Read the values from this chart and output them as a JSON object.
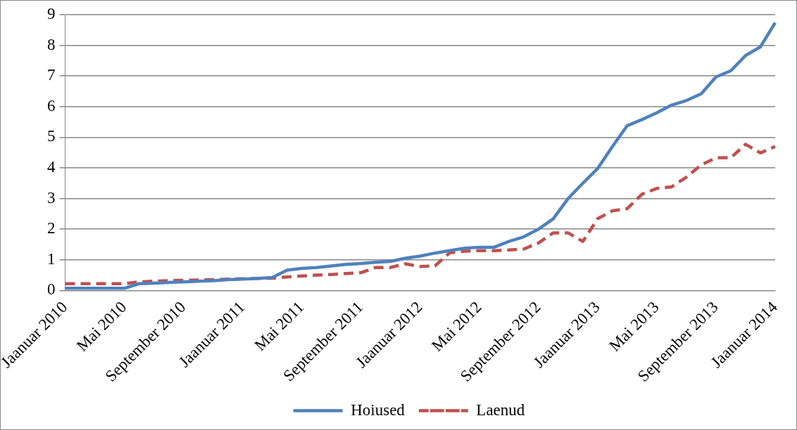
{
  "chart_data": {
    "type": "line",
    "categories": [
      "Jaanuar 2010",
      null,
      null,
      null,
      "Mai 2010",
      null,
      null,
      null,
      "September 2010",
      null,
      null,
      null,
      "Jaanuar 2011",
      null,
      null,
      null,
      "Mai 2011",
      null,
      null,
      null,
      "September 2011",
      null,
      null,
      null,
      "Jaanuar 2012",
      null,
      null,
      null,
      "Mai 2012",
      null,
      null,
      null,
      "September 2012",
      null,
      null,
      null,
      "Jaanuar 2013",
      null,
      null,
      null,
      "Mai 2013",
      null,
      null,
      null,
      "September 2013",
      null,
      null,
      null,
      "Jaanuar 2014"
    ],
    "series": [
      {
        "name": "Hoiused",
        "color": "#4f81bd",
        "line_style": "solid",
        "values": [
          0.07,
          0.07,
          0.07,
          0.07,
          0.07,
          0.22,
          0.24,
          0.26,
          0.28,
          0.3,
          0.32,
          0.35,
          0.37,
          0.39,
          0.42,
          0.66,
          0.72,
          0.75,
          0.8,
          0.85,
          0.88,
          0.92,
          0.95,
          1.05,
          1.12,
          1.22,
          1.3,
          1.38,
          1.41,
          1.41,
          1.6,
          1.75,
          2.0,
          2.34,
          3.0,
          3.5,
          3.98,
          4.7,
          5.38,
          5.58,
          5.8,
          6.05,
          6.2,
          6.42,
          6.97,
          7.17,
          7.67,
          7.95,
          8.74
        ]
      },
      {
        "name": "Laenud",
        "color": "#c0504d",
        "line_style": "dashed",
        "values": [
          0.22,
          0.22,
          0.22,
          0.22,
          0.22,
          0.28,
          0.3,
          0.32,
          0.33,
          0.34,
          0.35,
          0.37,
          0.38,
          0.39,
          0.4,
          0.44,
          0.47,
          0.5,
          0.52,
          0.55,
          0.58,
          0.75,
          0.75,
          0.87,
          0.78,
          0.8,
          1.23,
          1.28,
          1.3,
          1.3,
          1.32,
          1.35,
          1.55,
          1.88,
          1.88,
          1.6,
          2.34,
          2.6,
          2.67,
          3.14,
          3.33,
          3.38,
          3.7,
          4.1,
          4.33,
          4.33,
          4.77,
          4.49,
          4.7
        ]
      }
    ],
    "ylim": [
      0,
      9
    ],
    "yticks": [
      0,
      1,
      2,
      3,
      4,
      5,
      6,
      7,
      8,
      9
    ],
    "grid": "y",
    "legend": "bottom",
    "marker": "none"
  }
}
